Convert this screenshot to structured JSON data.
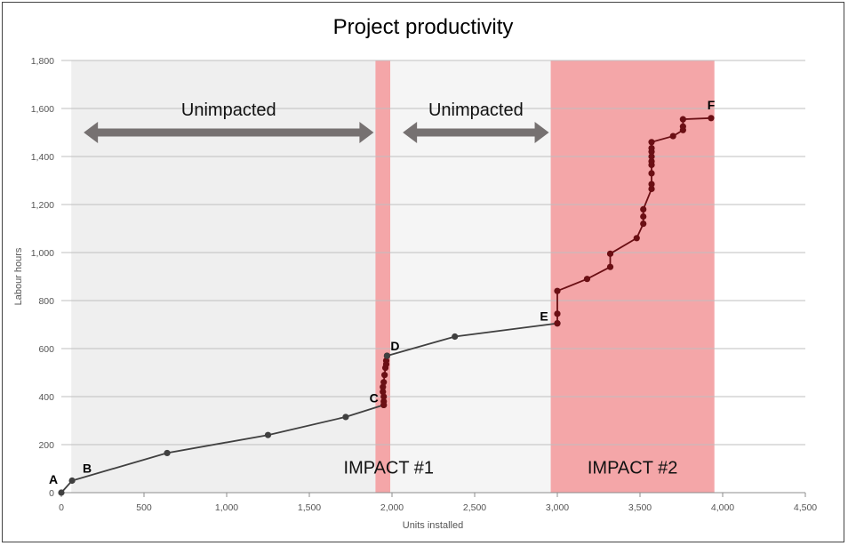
{
  "chart_data": {
    "type": "line",
    "title": "Project productivity",
    "xlabel": "Units installed",
    "ylabel": "Labour hours",
    "xlim": [
      0,
      4500
    ],
    "ylim": [
      0,
      1800
    ],
    "x_ticks": [
      "0",
      "500",
      "1,000",
      "1,500",
      "2,000",
      "2,500",
      "3,000",
      "3,500",
      "4,000",
      "4,500"
    ],
    "y_ticks": [
      "0",
      "200",
      "400",
      "600",
      "800",
      "1,000",
      "1,200",
      "1,400",
      "1,600",
      "1,800"
    ],
    "grid": "horizontal",
    "colors": {
      "unimpacted_band_1": "#efefef",
      "unimpacted_band_2": "#f5f5f5",
      "impact_band": "#f4a6a8",
      "arrow": "#767171",
      "line_unimpacted": "#404040",
      "line_impacted": "#6b0f14"
    },
    "regions": [
      {
        "kind": "unimpacted",
        "x_start": 60,
        "x_end": 1900,
        "label": "Unimpacted",
        "arrow": true
      },
      {
        "kind": "impact",
        "x_start": 1900,
        "x_end": 1990,
        "label": "IMPACT #1"
      },
      {
        "kind": "unimpacted",
        "x_start": 1990,
        "x_end": 2960,
        "label": "Unimpacted",
        "arrow": true
      },
      {
        "kind": "impact",
        "x_start": 2960,
        "x_end": 3950,
        "label": "IMPACT #2"
      }
    ],
    "segments": [
      {
        "phase": "unimpacted",
        "points": [
          [
            0,
            0
          ],
          [
            65,
            50
          ],
          [
            640,
            165
          ],
          [
            1250,
            240
          ],
          [
            1720,
            315
          ],
          [
            1950,
            365
          ]
        ]
      },
      {
        "phase": "impact",
        "points": [
          [
            1950,
            365
          ],
          [
            1950,
            380
          ],
          [
            1950,
            400
          ],
          [
            1945,
            420
          ],
          [
            1945,
            440
          ],
          [
            1950,
            460
          ],
          [
            1955,
            490
          ],
          [
            1960,
            520
          ],
          [
            1965,
            535
          ],
          [
            1965,
            550
          ],
          [
            1970,
            570
          ]
        ]
      },
      {
        "phase": "unimpacted",
        "points": [
          [
            1970,
            570
          ],
          [
            2380,
            650
          ],
          [
            3000,
            705
          ]
        ]
      },
      {
        "phase": "impact",
        "points": [
          [
            3000,
            705
          ],
          [
            3000,
            745
          ],
          [
            3000,
            840
          ],
          [
            3180,
            890
          ],
          [
            3320,
            940
          ],
          [
            3320,
            995
          ],
          [
            3480,
            1060
          ],
          [
            3520,
            1120
          ],
          [
            3520,
            1150
          ],
          [
            3520,
            1180
          ],
          [
            3570,
            1265
          ],
          [
            3570,
            1285
          ],
          [
            3570,
            1330
          ],
          [
            3570,
            1365
          ],
          [
            3570,
            1380
          ],
          [
            3570,
            1400
          ],
          [
            3570,
            1420
          ],
          [
            3570,
            1435
          ],
          [
            3570,
            1460
          ],
          [
            3700,
            1485
          ],
          [
            3760,
            1510
          ],
          [
            3760,
            1525
          ],
          [
            3760,
            1555
          ],
          [
            3930,
            1560
          ]
        ]
      }
    ],
    "point_labels": [
      {
        "text": "A",
        "x": 0,
        "y": 0
      },
      {
        "text": "B",
        "x": 65,
        "y": 50
      },
      {
        "text": "C",
        "x": 1950,
        "y": 365
      },
      {
        "text": "D",
        "x": 1970,
        "y": 570
      },
      {
        "text": "E",
        "x": 3000,
        "y": 705
      },
      {
        "text": "F",
        "x": 3930,
        "y": 1560
      }
    ],
    "band_labels": [
      "IMPACT #1",
      "IMPACT #2"
    ]
  }
}
